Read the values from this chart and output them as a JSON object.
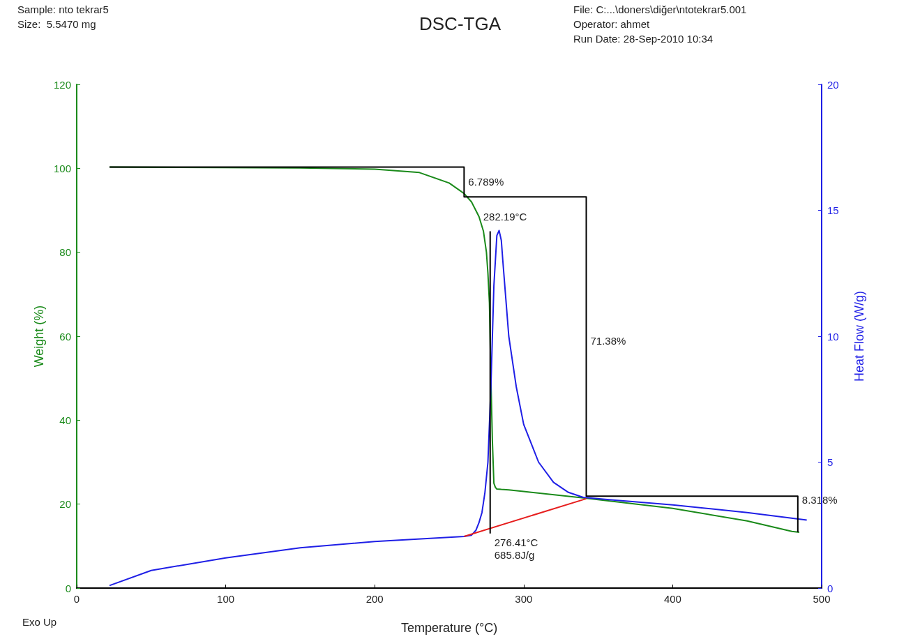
{
  "chart_data": {
    "type": "line",
    "title": "DSC-TGA",
    "xlabel": "Temperature (°C)",
    "ylabel": "Weight (%)",
    "y2label": "Heat Flow (W/g)",
    "xlim": [
      0,
      500
    ],
    "xticks": [
      0,
      100,
      200,
      300,
      400,
      500
    ],
    "ylim": [
      0,
      120
    ],
    "yticks": [
      0,
      20,
      40,
      60,
      80,
      100,
      120
    ],
    "y2lim": [
      0,
      20
    ],
    "y2ticks": [
      0,
      5,
      10,
      15,
      20
    ],
    "grid": false,
    "marker": "none",
    "line_style": "solid",
    "series": [
      {
        "color": "#1a8a1a",
        "x": [
          22,
          100,
          150,
          200,
          230,
          250,
          260,
          265,
          270,
          273,
          275,
          276,
          277,
          278,
          279,
          280,
          281,
          282,
          285,
          290,
          300,
          340,
          400,
          450,
          480,
          485
        ],
        "values": [
          100.3,
          100.2,
          100.1,
          99.8,
          99,
          96.5,
          94,
          92,
          88.5,
          85,
          80,
          75,
          68,
          50,
          35,
          25,
          24,
          23.6,
          23.5,
          23.4,
          23,
          21.5,
          19,
          16,
          13.5,
          13.3
        ]
      },
      {
        "color": "#1f1fe6",
        "axis": "y2",
        "x": [
          22,
          50,
          100,
          150,
          200,
          260,
          265,
          268,
          270,
          272,
          274,
          276,
          278,
          280,
          282,
          283.5,
          285,
          286,
          288,
          290,
          295,
          300,
          310,
          320,
          330,
          340,
          360,
          400,
          450,
          490
        ],
        "values": [
          0.1,
          0.7,
          1.2,
          1.6,
          1.85,
          2.05,
          2.1,
          2.3,
          2.6,
          3,
          3.8,
          5,
          8,
          12,
          14,
          14.2,
          13.8,
          13,
          11.5,
          10,
          8,
          6.5,
          5,
          4.2,
          3.8,
          3.6,
          3.5,
          3.3,
          3,
          2.7
        ]
      },
      {
        "color": "#e61e1e",
        "axis": "y2",
        "x": [
          260,
          342
        ],
        "values": [
          2.05,
          3.55
        ]
      },
      {
        "color": "#000000",
        "x": [
          22,
          260,
          260,
          260,
          342,
          342,
          342,
          484,
          484,
          484
        ],
        "values": [
          100.3,
          100.3,
          93.2,
          93.2,
          93.2,
          21.9,
          21.9,
          21.9,
          21.9,
          13.3
        ]
      },
      {
        "color": "#000000",
        "x": [
          277.5,
          277.5
        ],
        "values": [
          13,
          85
        ]
      }
    ],
    "annotations": [
      "Sample: nto tekrar5",
      "Size:  5.5470 mg",
      "File: C:...\\doners\\diğer\\ntotekrar5.001",
      "Operator: ahmet",
      "Run Date: 28-Sep-2010 10:34",
      "Exo Up",
      {
        "text": "6.789%",
        "x": 260,
        "y": 96.8
      },
      {
        "text": "282.19°C",
        "x": 270,
        "y": 88.5
      },
      {
        "text": "71.38%",
        "x": 342,
        "y": 59
      },
      {
        "text": "8.318%",
        "x": 484,
        "y": 21
      },
      {
        "text": "276.41°C\n685.8J/g",
        "x": 277.5,
        "y": 13
      }
    ]
  }
}
